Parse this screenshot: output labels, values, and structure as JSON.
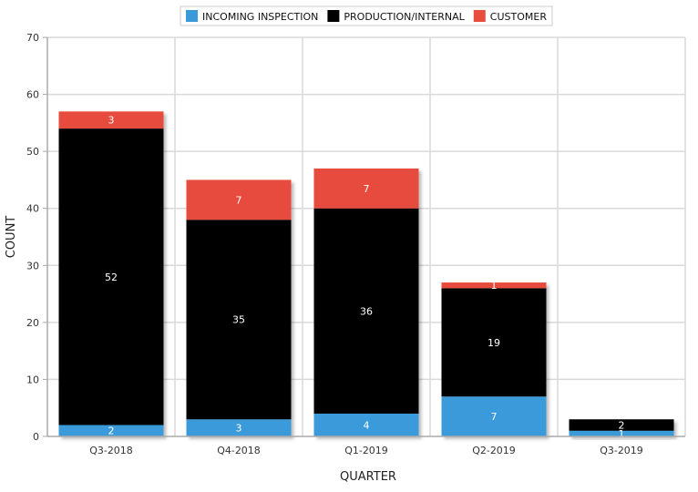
{
  "chart_data": {
    "type": "bar",
    "stacked": true,
    "categories": [
      "Q3-2018",
      "Q4-2018",
      "Q1-2019",
      "Q2-2019",
      "Q3-2019"
    ],
    "series": [
      {
        "name": "INCOMING INSPECTION",
        "color": "#3a9ad9",
        "values": [
          2,
          3,
          4,
          7,
          1
        ]
      },
      {
        "name": "PRODUCTION/INTERNAL",
        "color": "#000000",
        "values": [
          52,
          35,
          36,
          19,
          2
        ]
      },
      {
        "name": "CUSTOMER",
        "color": "#e74c3c",
        "values": [
          3,
          7,
          7,
          1,
          0
        ]
      }
    ],
    "xlabel": "QUARTER",
    "ylabel": "COUNT",
    "ylim": [
      0,
      70
    ],
    "yticks": [
      0,
      10,
      20,
      30,
      40,
      50,
      60,
      70
    ],
    "grid": true,
    "legend_position": "top-center"
  }
}
